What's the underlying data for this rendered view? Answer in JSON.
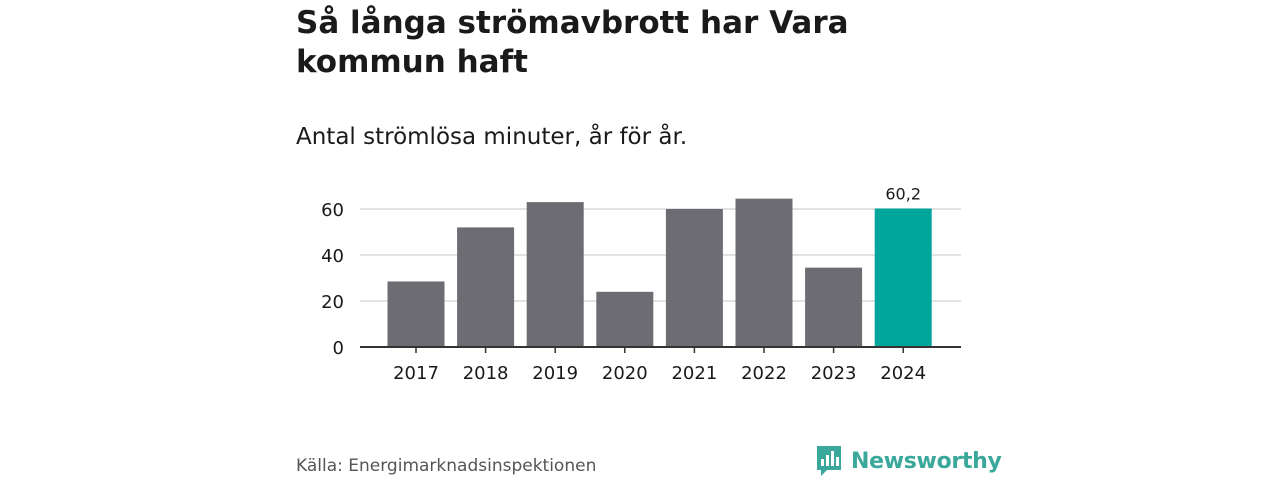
{
  "header": {
    "title": "Så långa strömavbrott har Vara kommun haft",
    "subtitle": "Antal strömlösa minuter, år för år."
  },
  "footer": {
    "source": "Källa: Energimarknadsinspektionen",
    "brand": "Newsworthy"
  },
  "colors": {
    "bar_default": "#6d6c72",
    "bar_highlight": "#00a69c",
    "gridline": "#d9d9d9",
    "axis": "#333333",
    "brand": "#3aa89a"
  },
  "chart_data": {
    "type": "bar",
    "title": "Så långa strömavbrott har Vara kommun haft",
    "subtitle": "Antal strömlösa minuter, år för år.",
    "categories": [
      "2017",
      "2018",
      "2019",
      "2020",
      "2021",
      "2022",
      "2023",
      "2024"
    ],
    "values": [
      28.5,
      52.0,
      63.0,
      24.0,
      60.0,
      64.5,
      34.5,
      60.2
    ],
    "highlight_index": 7,
    "data_labels": [
      {
        "index": 7,
        "text": "60,2"
      }
    ],
    "ylim": [
      0,
      70
    ],
    "yticks": [
      0,
      20,
      40,
      60
    ],
    "ytick_labels": [
      "0",
      "20",
      "40",
      "60"
    ],
    "grid": true,
    "xlabel": "",
    "ylabel": ""
  }
}
